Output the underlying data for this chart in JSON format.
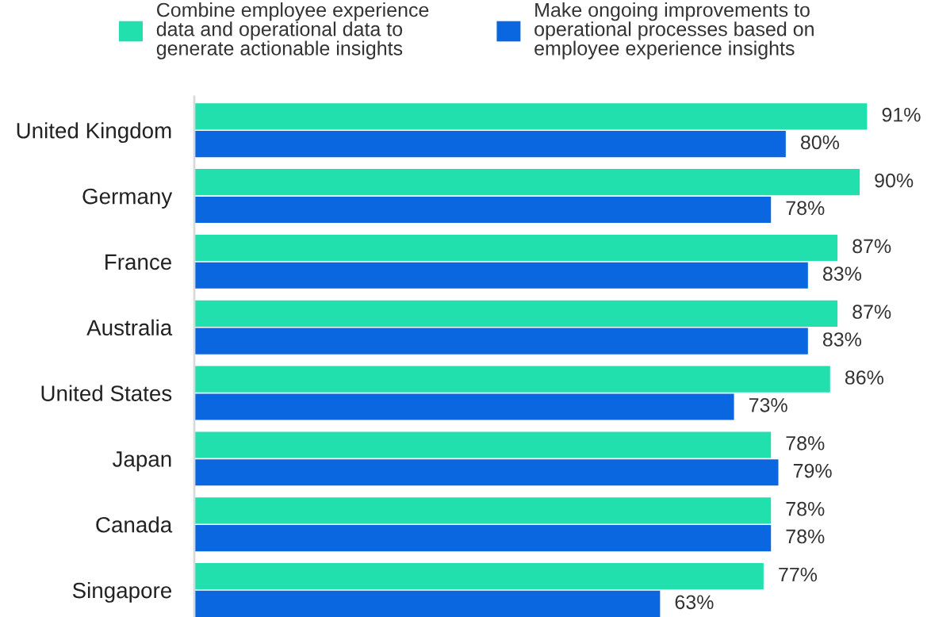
{
  "chart_data": {
    "type": "bar",
    "orientation": "horizontal",
    "tick_labels": "y",
    "legend": "top",
    "categories": [
      "United Kingdom",
      "Germany",
      "France",
      "Australia",
      "United States",
      "Japan",
      "Canada",
      "Singapore"
    ],
    "series": [
      {
        "name": "Combine employee experience\ndata and operational data to\ngenerate actionable insights",
        "color": "#22dfae",
        "values": [
          91,
          90,
          87,
          87,
          86,
          78,
          78,
          77
        ],
        "value_labels": [
          "91%",
          "90%",
          "87%",
          "87%",
          "86%",
          "78%",
          "78%",
          "77%"
        ]
      },
      {
        "name": "Make ongoing improvements to\noperational processes based on\nemployee experience insights",
        "color": "#0a67e0",
        "values": [
          80,
          78,
          83,
          83,
          73,
          79,
          78,
          63
        ],
        "value_labels": [
          "80%",
          "78%",
          "83%",
          "83%",
          "73%",
          "79%",
          "78%",
          "63%"
        ]
      }
    ]
  }
}
